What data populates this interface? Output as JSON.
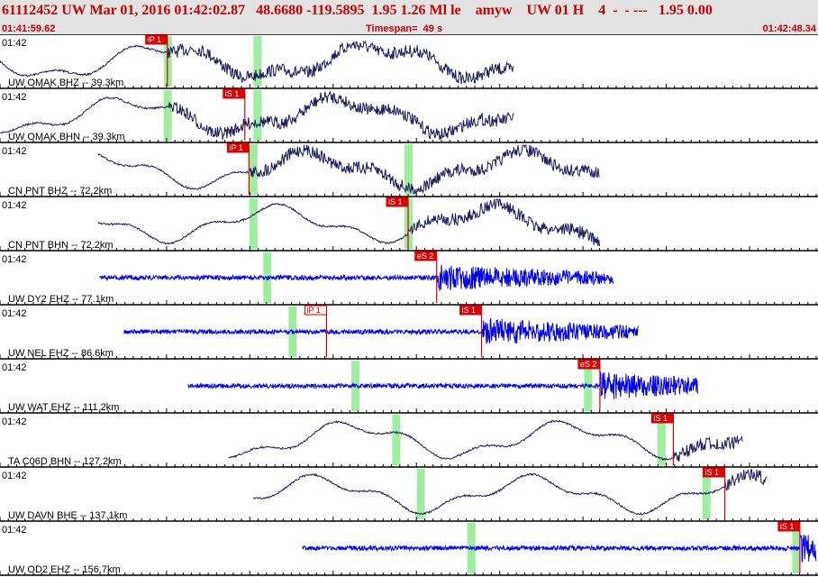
{
  "header": {
    "title": "61112452 UW Mar 01, 2016 01:42:02.87   48.6680 -119.5895  1.95 1.26 Ml le    amyw    UW 01 H    4  -  - ---   1.95 0.00",
    "start_time": "01:41:59.62",
    "timespan": "Timespan=  49 s",
    "end_time": "01:42:48.34"
  },
  "chart_data": {
    "type": "line",
    "x_start": "01:41:59.62",
    "x_end": "01:42:48.34",
    "timespan_s": 49,
    "colors": {
      "trace_dark": "#1a1a5e",
      "trace_blue": "#0000ee",
      "pick": "#dd0000",
      "window": "#9eeea0"
    },
    "series": [
      {
        "label": "UW OMAK BHZ -- 39.3km",
        "time": "01:42",
        "color": "#1a1a5e",
        "style": "wavy",
        "start": 0.0,
        "end": 0.63,
        "onset": 0.205,
        "picks": [
          {
            "text": "iP 1",
            "t": 0.205,
            "style": "solid"
          }
        ],
        "windows": [
          0.205,
          0.315
        ]
      },
      {
        "label": "UW OMAK BHN -- 39.3km",
        "time": "01:42",
        "color": "#1a1a5e",
        "style": "wavy",
        "start": 0.0,
        "end": 0.63,
        "onset": 0.205,
        "picks": [
          {
            "text": "iS 1",
            "t": 0.3,
            "style": "solid"
          }
        ],
        "windows": [
          0.205,
          0.315
        ]
      },
      {
        "label": "CN PNT BHZ -- 72.2km",
        "time": "01:42",
        "color": "#1a1a5e",
        "style": "wavy",
        "start": 0.12,
        "end": 0.735,
        "onset": 0.305,
        "picks": [
          {
            "text": "iP 1",
            "t": 0.305,
            "style": "solid"
          }
        ],
        "windows": [
          0.31,
          0.5
        ]
      },
      {
        "label": "CN PNT BHN -- 72.2km",
        "time": "01:42",
        "color": "#1a1a5e",
        "style": "wavy",
        "start": 0.12,
        "end": 0.735,
        "onset": 0.5,
        "picks": [
          {
            "text": "iS 1",
            "t": 0.5,
            "style": "solid"
          }
        ],
        "windows": [
          0.31,
          0.5
        ]
      },
      {
        "label": "UW DY2 EHZ -- 77.1km",
        "time": "01:42",
        "color": "#0000ee",
        "style": "noise",
        "start": 0.122,
        "end": 0.752,
        "onset": 0.535,
        "picks": [
          {
            "text": "eS 2",
            "t": 0.535,
            "style": "solid"
          }
        ],
        "windows": [
          0.327
        ]
      },
      {
        "label": "UW NEL EHZ -- 86.6km",
        "time": "01:42",
        "color": "#0000ee",
        "style": "noise",
        "start": 0.152,
        "end": 0.782,
        "onset": 0.59,
        "picks": [
          {
            "text": "iP 1",
            "t": 0.4,
            "style": "hollow"
          },
          {
            "text": "iS 1",
            "t": 0.59,
            "style": "solid"
          }
        ],
        "windows": [
          0.358
        ]
      },
      {
        "label": "UW WAT EHZ -- 111.2km",
        "time": "01:42",
        "color": "#0000ee",
        "style": "noise",
        "start": 0.23,
        "end": 0.855,
        "onset": 0.735,
        "picks": [
          {
            "text": "eS 2",
            "t": 0.735,
            "style": "solid"
          }
        ],
        "windows": [
          0.435,
          0.72
        ]
      },
      {
        "label": "TA C06D BHN -- 127.2km",
        "time": "01:42",
        "color": "#1a1a5e",
        "style": "wavy",
        "start": 0.28,
        "end": 0.91,
        "onset": 0.825,
        "picks": [
          {
            "text": "iS 1",
            "t": 0.825,
            "style": "solid"
          }
        ],
        "windows": [
          0.485,
          0.81
        ]
      },
      {
        "label": "UW DAVN BHE -- 137.1km",
        "time": "01:42",
        "color": "#1a1a5e",
        "style": "wavy",
        "start": 0.31,
        "end": 0.94,
        "onset": 0.888,
        "picks": [
          {
            "text": "iS 1",
            "t": 0.888,
            "style": "solid"
          }
        ],
        "windows": [
          0.515,
          0.865
        ]
      },
      {
        "label": "UW OD2 EHZ -- 156.7km",
        "time": "01:42",
        "color": "#0000ee",
        "style": "noise",
        "start": 0.37,
        "end": 1.0,
        "onset": 0.98,
        "picks": [
          {
            "text": "iS 1",
            "t": 0.98,
            "style": "solid"
          }
        ],
        "windows": [
          0.577,
          0.975
        ]
      }
    ]
  }
}
